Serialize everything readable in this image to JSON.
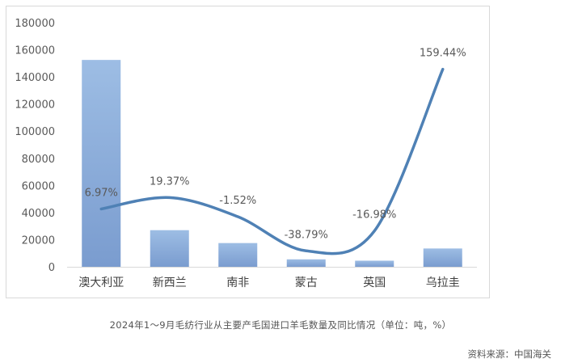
{
  "chart_data": {
    "type": "bar+line",
    "categories": [
      "澳大利亚",
      "新西兰",
      "南非",
      "蒙古",
      "英国",
      "乌拉圭"
    ],
    "series": [
      {
        "type": "bar",
        "axis": "left",
        "values": [
          152500,
          27000,
          17500,
          5500,
          4500,
          13500
        ],
        "color": "#8eb0dc"
      },
      {
        "type": "line",
        "axis": "hidden",
        "values": [
          6.97,
          19.37,
          -1.52,
          -38.79,
          -16.98,
          159.44
        ],
        "labels": [
          "6.97%",
          "19.37%",
          "-1.52%",
          "-38.79%",
          "-16.98%",
          "159.44%"
        ],
        "color": "#4f81b5"
      }
    ],
    "y_ticks": [
      "0",
      "20000",
      "40000",
      "60000",
      "80000",
      "100000",
      "120000",
      "140000",
      "160000",
      "180000"
    ],
    "ylim": [
      0,
      180000
    ],
    "legend": "none",
    "grid": false
  },
  "caption": "2024年1～9月毛纺行业从主要产毛国进口羊毛数量及同比情况（单位：吨，%）",
  "source": "资料来源：中国海关"
}
